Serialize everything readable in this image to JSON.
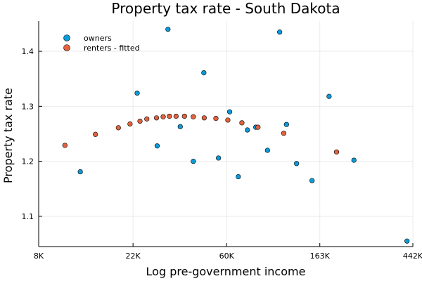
{
  "chart_data": {
    "type": "scatter",
    "title": "Property tax rate - South Dakota",
    "xlabel": "Log pre-government income",
    "ylabel": "Property tax rate",
    "x_scale": "log",
    "xlim": [
      8000,
      442000
    ],
    "ylim": [
      1.045,
      1.455
    ],
    "x_ticks": [
      8000,
      22000,
      60000,
      163000,
      442000
    ],
    "x_tick_labels": [
      "8K",
      "22K",
      "60K",
      "163K",
      "442K"
    ],
    "y_ticks": [
      1.1,
      1.2,
      1.3,
      1.4
    ],
    "y_tick_labels": [
      "1.1",
      "1.2",
      "1.3",
      "1.4"
    ],
    "grid": true,
    "legend_position": "top-left",
    "series": [
      {
        "name": "owners",
        "color": "#0b9bd9",
        "points": [
          {
            "x": 12500,
            "y": 1.181
          },
          {
            "x": 23000,
            "y": 1.324
          },
          {
            "x": 28500,
            "y": 1.228
          },
          {
            "x": 32000,
            "y": 1.44
          },
          {
            "x": 36500,
            "y": 1.263
          },
          {
            "x": 42000,
            "y": 1.2
          },
          {
            "x": 47000,
            "y": 1.361
          },
          {
            "x": 55000,
            "y": 1.206
          },
          {
            "x": 62000,
            "y": 1.29
          },
          {
            "x": 68000,
            "y": 1.172
          },
          {
            "x": 75000,
            "y": 1.257
          },
          {
            "x": 82000,
            "y": 1.262
          },
          {
            "x": 93000,
            "y": 1.22
          },
          {
            "x": 106000,
            "y": 1.435
          },
          {
            "x": 114000,
            "y": 1.267
          },
          {
            "x": 127000,
            "y": 1.196
          },
          {
            "x": 150000,
            "y": 1.165
          },
          {
            "x": 180000,
            "y": 1.318
          },
          {
            "x": 235000,
            "y": 1.202
          },
          {
            "x": 415000,
            "y": 1.055
          }
        ]
      },
      {
        "name": "renters - fitted",
        "color": "#e3633f",
        "points": [
          {
            "x": 10600,
            "y": 1.229
          },
          {
            "x": 14700,
            "y": 1.249
          },
          {
            "x": 18800,
            "y": 1.261
          },
          {
            "x": 21300,
            "y": 1.268
          },
          {
            "x": 23700,
            "y": 1.273
          },
          {
            "x": 25500,
            "y": 1.277
          },
          {
            "x": 28300,
            "y": 1.279
          },
          {
            "x": 30400,
            "y": 1.281
          },
          {
            "x": 32500,
            "y": 1.282
          },
          {
            "x": 34900,
            "y": 1.282
          },
          {
            "x": 38200,
            "y": 1.282
          },
          {
            "x": 42000,
            "y": 1.281
          },
          {
            "x": 47200,
            "y": 1.279
          },
          {
            "x": 53500,
            "y": 1.278
          },
          {
            "x": 60800,
            "y": 1.275
          },
          {
            "x": 70700,
            "y": 1.27
          },
          {
            "x": 84000,
            "y": 1.262
          },
          {
            "x": 110700,
            "y": 1.251
          },
          {
            "x": 195000,
            "y": 1.217
          }
        ]
      }
    ]
  }
}
